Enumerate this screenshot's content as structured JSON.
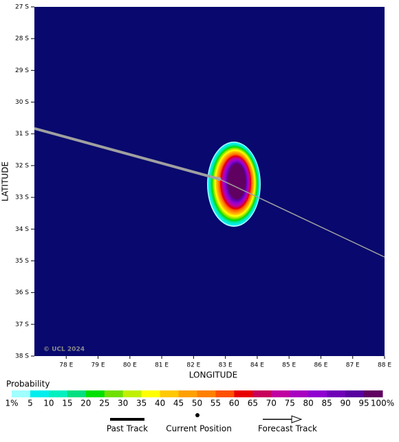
{
  "chart_data": {
    "type": "probability-map",
    "xlabel": "LONGITUDE",
    "ylabel": "LATITUDE",
    "copyright": "© UCL 2024",
    "background": "#08086e",
    "xlim": [
      77,
      88
    ],
    "ylim": [
      27,
      38
    ],
    "xticks": [
      {
        "value": 78,
        "label": "78 E"
      },
      {
        "value": 79,
        "label": "79 E"
      },
      {
        "value": 80,
        "label": "80 E"
      },
      {
        "value": 81,
        "label": "81 E"
      },
      {
        "value": 82,
        "label": "82 E"
      },
      {
        "value": 83,
        "label": "83 E"
      },
      {
        "value": 84,
        "label": "84 E"
      },
      {
        "value": 85,
        "label": "85 E"
      },
      {
        "value": 86,
        "label": "86 E"
      },
      {
        "value": 87,
        "label": "87 E"
      },
      {
        "value": 88,
        "label": "88 E"
      }
    ],
    "yticks": [
      {
        "value": 27,
        "label": "27 S"
      },
      {
        "value": 28,
        "label": "28 S"
      },
      {
        "value": 29,
        "label": "29 S"
      },
      {
        "value": 30,
        "label": "30 S"
      },
      {
        "value": 31,
        "label": "31 S"
      },
      {
        "value": 32,
        "label": "32 S"
      },
      {
        "value": 33,
        "label": "33 S"
      },
      {
        "value": 34,
        "label": "34 S"
      },
      {
        "value": 35,
        "label": "35 S"
      },
      {
        "value": 36,
        "label": "36 S"
      },
      {
        "value": 37,
        "label": "37 S"
      },
      {
        "value": 38,
        "label": "38 S"
      }
    ],
    "track": {
      "past": {
        "lon": [
          77,
          82.8
        ],
        "lat": [
          30.83,
          32.42
        ],
        "color": "#a0a0a0"
      },
      "current": {
        "lon": 82.8,
        "lat": 32.42
      },
      "forecast": {
        "lon": [
          82.8,
          88
        ],
        "lat": [
          32.42,
          34.88
        ],
        "color": "#a0a0a0"
      }
    },
    "colorbar": {
      "title": "Probability",
      "labels": [
        "1%",
        "5",
        "10",
        "15",
        "20",
        "25",
        "30",
        "35",
        "40",
        "45",
        "50",
        "55",
        "60",
        "65",
        "70",
        "75",
        "80",
        "85",
        "90",
        "95",
        "100%"
      ],
      "colors": [
        "#a0ffff",
        "#00eeee",
        "#00f0c0",
        "#00e080",
        "#00e000",
        "#70e000",
        "#c0f000",
        "#ffff00",
        "#ffc800",
        "#ffa000",
        "#ff8000",
        "#ff5000",
        "#e80000",
        "#c8005a",
        "#c000a0",
        "#a800c0",
        "#9000d0",
        "#7000b8",
        "#5800a0",
        "#600060"
      ]
    },
    "legend": [
      "Past Track",
      "Current Position",
      "Forecast Track"
    ]
  }
}
